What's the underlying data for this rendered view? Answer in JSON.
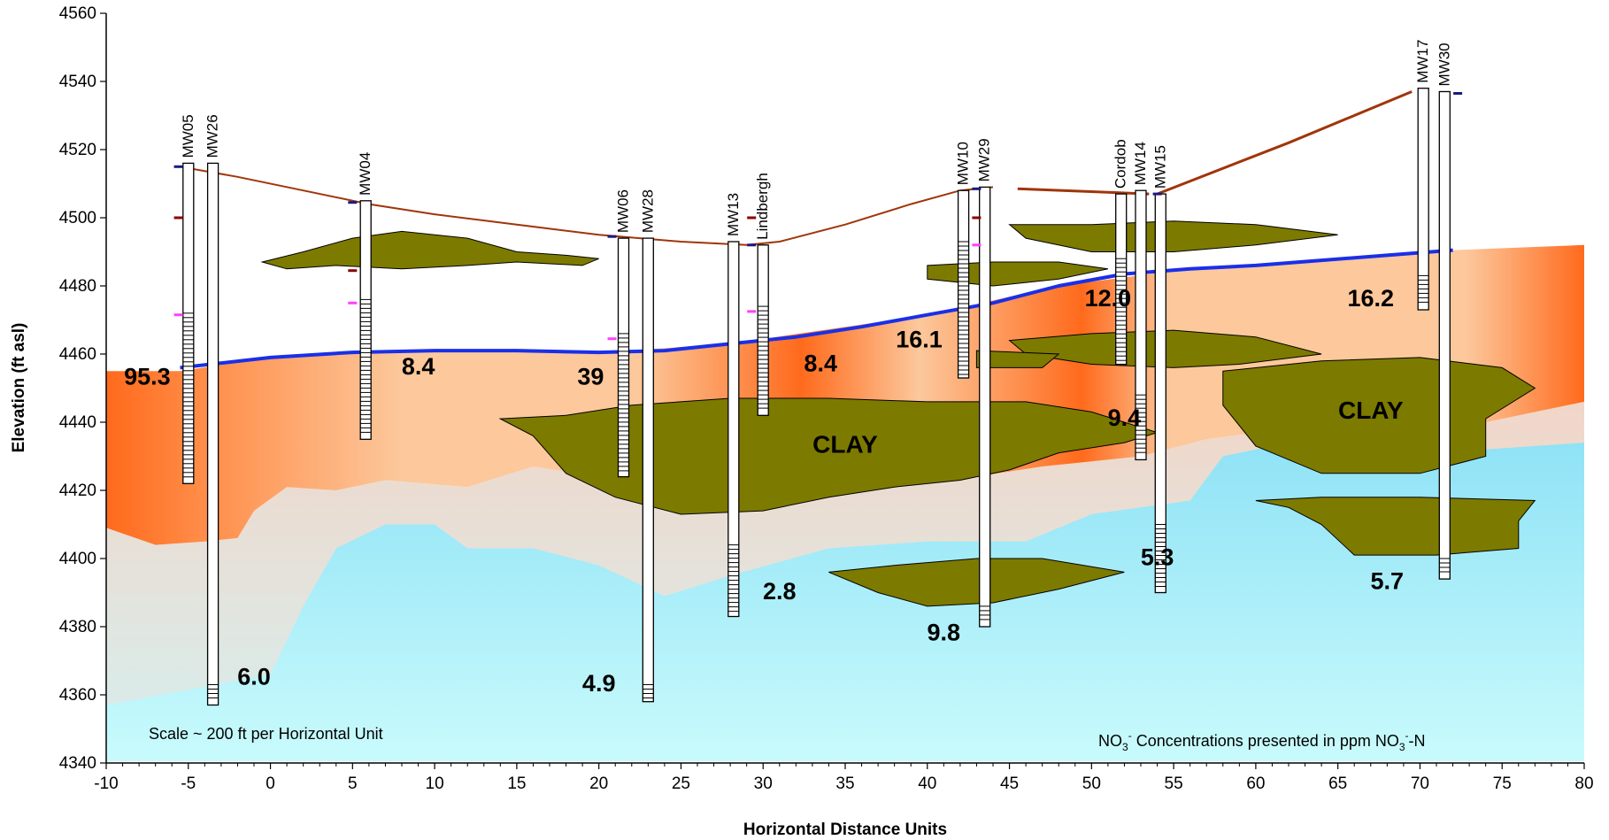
{
  "chart_data": {
    "type": "diagram",
    "xlabel": "Horizontal Distance Units",
    "ylabel": "Elevation (ft asl)",
    "xlim": [
      -10,
      80
    ],
    "ylim": [
      4340,
      4560
    ],
    "x_ticks": [
      -10,
      -5,
      0,
      5,
      10,
      15,
      20,
      25,
      30,
      35,
      40,
      45,
      50,
      55,
      60,
      65,
      70,
      75,
      80
    ],
    "y_ticks": [
      4340,
      4360,
      4380,
      4400,
      4420,
      4440,
      4460,
      4480,
      4500,
      4520,
      4540,
      4560
    ],
    "scale_note": "Scale ~ 200 ft per Horizontal Unit",
    "concentration_note": {
      "pre": "NO",
      "sub1": "3",
      "sup1": "-",
      "mid": " Concentrations presented in ppm NO",
      "sub2": "3",
      "sup2": "-",
      "post": "-N"
    },
    "colors": {
      "ground_surface": "#a0350b",
      "water_table": "#1a2fe8",
      "clay": "#7d7a00",
      "nitrate_high": "#ff6a1c",
      "nitrate_low": "#fcc89c",
      "groundwater": "#8fe2f6",
      "groundwater_light": "#c9fbfc"
    },
    "ground_surface": [
      [
        -5.5,
        4515
      ],
      [
        -2,
        4512
      ],
      [
        2,
        4508
      ],
      [
        6,
        4504
      ],
      [
        10,
        4501
      ],
      [
        15,
        4498
      ],
      [
        20,
        4495
      ],
      [
        25,
        4493
      ],
      [
        29,
        4492
      ],
      [
        31,
        4493
      ],
      [
        35,
        4498
      ],
      [
        39,
        4504
      ],
      [
        42,
        4508
      ],
      [
        44,
        4509
      ],
      null,
      [
        45.5,
        4508.5
      ],
      [
        53.5,
        4507
      ],
      null,
      [
        54,
        4507
      ],
      [
        62,
        4522
      ],
      [
        69.5,
        4537
      ]
    ],
    "water_table": [
      [
        -5.5,
        4456
      ],
      [
        0,
        4459
      ],
      [
        5,
        4460.5
      ],
      [
        10,
        4461
      ],
      [
        15,
        4461
      ],
      [
        20,
        4460.5
      ],
      [
        24,
        4461
      ],
      [
        28,
        4463
      ],
      [
        32,
        4465
      ],
      [
        36,
        4468
      ],
      [
        40,
        4471.5
      ],
      [
        44,
        4475
      ],
      [
        48,
        4480
      ],
      [
        52,
        4483.5
      ],
      [
        56,
        4485
      ],
      [
        60,
        4486
      ],
      [
        64,
        4487.5
      ],
      [
        68,
        4489
      ],
      [
        72,
        4490.5
      ]
    ],
    "nitrate_zone_top": [
      [
        -10,
        4455
      ],
      [
        -5.5,
        4455
      ],
      [
        0,
        4459
      ],
      [
        10,
        4461
      ],
      [
        20,
        4460.5
      ],
      [
        28,
        4463
      ],
      [
        40,
        4471.5
      ],
      [
        48,
        4480
      ],
      [
        56,
        4485
      ],
      [
        64,
        4487.5
      ],
      [
        72,
        4490.5
      ],
      [
        80,
        4492
      ]
    ],
    "nitrate_zone_bottom": [
      [
        80,
        4446
      ],
      [
        74,
        4440
      ],
      [
        66,
        4437
      ],
      [
        60,
        4437
      ],
      [
        57,
        4435
      ],
      [
        53,
        4430
      ],
      [
        47,
        4427
      ],
      [
        43,
        4424
      ],
      [
        38,
        4422
      ],
      [
        33,
        4418
      ],
      [
        30,
        4416
      ],
      [
        25,
        4418
      ],
      [
        20,
        4424
      ],
      [
        16,
        4427
      ],
      [
        12,
        4421
      ],
      [
        7,
        4423
      ],
      [
        4,
        4420
      ],
      [
        1,
        4421
      ],
      [
        -1,
        4414
      ],
      [
        -2,
        4406
      ],
      [
        -4,
        4405
      ],
      [
        -7,
        4404
      ],
      [
        -10,
        4409
      ]
    ],
    "groundwater_zone_top": [
      [
        -10,
        4357
      ],
      [
        0,
        4366
      ],
      [
        2,
        4386
      ],
      [
        4,
        4403
      ],
      [
        7,
        4410
      ],
      [
        10,
        4410
      ],
      [
        12,
        4403
      ],
      [
        16,
        4403
      ],
      [
        20,
        4398
      ],
      [
        24,
        4389
      ],
      [
        28,
        4395
      ],
      [
        34,
        4403
      ],
      [
        40,
        4405
      ],
      [
        46,
        4405
      ],
      [
        50,
        4413
      ],
      [
        56,
        4417
      ],
      [
        58,
        4430
      ],
      [
        62,
        4434
      ],
      [
        66,
        4435
      ],
      [
        74,
        4432
      ],
      [
        80,
        4434
      ]
    ],
    "clay_lenses": [
      [
        [
          -0.5,
          4487
        ],
        [
          2,
          4490
        ],
        [
          5,
          4494
        ],
        [
          8,
          4496
        ],
        [
          12,
          4494
        ],
        [
          15,
          4490
        ],
        [
          18,
          4489
        ],
        [
          20,
          4488
        ],
        [
          19,
          4486
        ],
        [
          15,
          4487
        ],
        [
          12,
          4486
        ],
        [
          8,
          4485
        ],
        [
          4,
          4486
        ],
        [
          1,
          4485
        ]
      ],
      [
        [
          14,
          4441
        ],
        [
          18,
          4442
        ],
        [
          22,
          4445
        ],
        [
          28,
          4447
        ],
        [
          34,
          4447
        ],
        [
          40,
          4446
        ],
        [
          46,
          4446
        ],
        [
          50,
          4443
        ],
        [
          54,
          4437
        ],
        [
          52,
          4434
        ],
        [
          48,
          4431
        ],
        [
          45,
          4426
        ],
        [
          42,
          4423
        ],
        [
          38,
          4421
        ],
        [
          34,
          4418
        ],
        [
          30,
          4414
        ],
        [
          25,
          4413
        ],
        [
          21,
          4418
        ],
        [
          18,
          4425
        ],
        [
          16,
          4436
        ]
      ],
      [
        [
          40,
          4486
        ],
        [
          44,
          4487
        ],
        [
          48,
          4487
        ],
        [
          51,
          4485
        ],
        [
          48,
          4482
        ],
        [
          44,
          4480
        ],
        [
          40,
          4482
        ]
      ],
      [
        [
          45,
          4498
        ],
        [
          50,
          4498
        ],
        [
          55,
          4499
        ],
        [
          60,
          4498
        ],
        [
          65,
          4495
        ],
        [
          60,
          4492
        ],
        [
          55,
          4490
        ],
        [
          50,
          4490
        ],
        [
          46,
          4494
        ]
      ],
      [
        [
          45,
          4464
        ],
        [
          50,
          4466
        ],
        [
          55,
          4467
        ],
        [
          60,
          4465
        ],
        [
          64,
          4460
        ],
        [
          59,
          4457
        ],
        [
          55,
          4456
        ],
        [
          50,
          4457
        ],
        [
          46,
          4460
        ]
      ],
      [
        [
          43,
          4461
        ],
        [
          48,
          4460
        ],
        [
          47,
          4456
        ],
        [
          43,
          4456
        ]
      ],
      [
        [
          34,
          4396
        ],
        [
          38,
          4398
        ],
        [
          43,
          4400
        ],
        [
          47,
          4400
        ],
        [
          52,
          4396
        ],
        [
          48,
          4391
        ],
        [
          44,
          4387
        ],
        [
          40,
          4386
        ],
        [
          37,
          4390
        ]
      ],
      [
        [
          58,
          4455
        ],
        [
          64,
          4458
        ],
        [
          70,
          4459
        ],
        [
          75,
          4456
        ],
        [
          77,
          4450
        ],
        [
          74,
          4441
        ],
        [
          74,
          4430
        ],
        [
          70,
          4425
        ],
        [
          64,
          4425
        ],
        [
          60,
          4433
        ],
        [
          58,
          4445
        ]
      ],
      [
        [
          60,
          4417
        ],
        [
          64,
          4418
        ],
        [
          70,
          4418
        ],
        [
          77,
          4417
        ],
        [
          76,
          4411
        ],
        [
          76,
          4403
        ],
        [
          71,
          4401
        ],
        [
          66,
          4401
        ],
        [
          64,
          4410
        ],
        [
          62,
          4415
        ]
      ]
    ],
    "wells": [
      {
        "name": "MW05",
        "x": -5,
        "top": 4516,
        "bottom": 4422,
        "screen_top": 4472,
        "screen_bottom": 4423
      },
      {
        "name": "MW26",
        "x": -3.5,
        "top": 4516,
        "bottom": 4357,
        "screen_top": 4363,
        "screen_bottom": 4358
      },
      {
        "name": "MW04",
        "x": 5.8,
        "top": 4505,
        "bottom": 4435,
        "screen_top": 4476,
        "screen_bottom": 4436
      },
      {
        "name": "MW06",
        "x": 21.5,
        "top": 4494,
        "bottom": 4424,
        "screen_top": 4466,
        "screen_bottom": 4425
      },
      {
        "name": "MW28",
        "x": 23,
        "top": 4494,
        "bottom": 4358,
        "screen_top": 4363,
        "screen_bottom": 4359
      },
      {
        "name": "MW13",
        "x": 28.2,
        "top": 4493,
        "bottom": 4383,
        "screen_top": 4404,
        "screen_bottom": 4384
      },
      {
        "name": "Lindbergh",
        "x": 30,
        "top": 4492,
        "bottom": 4442,
        "screen_top": 4474,
        "screen_bottom": 4443
      },
      {
        "name": "MW10",
        "x": 42.2,
        "top": 4508,
        "bottom": 4453,
        "screen_top": 4493,
        "screen_bottom": 4454
      },
      {
        "name": "MW29",
        "x": 43.5,
        "top": 4509,
        "bottom": 4380,
        "screen_top": 4386,
        "screen_bottom": 4381
      },
      {
        "name": "Cordob",
        "x": 51.8,
        "top": 4507,
        "bottom": 4457,
        "screen_top": 4488,
        "screen_bottom": 4458
      },
      {
        "name": "MW14",
        "x": 53,
        "top": 4508,
        "bottom": 4429,
        "screen_top": 4448,
        "screen_bottom": 4430
      },
      {
        "name": "MW15",
        "x": 54.2,
        "top": 4507,
        "bottom": 4390,
        "screen_top": 4410,
        "screen_bottom": 4391
      },
      {
        "name": "MW17",
        "x": 70.2,
        "top": 4538,
        "bottom": 4473,
        "screen_top": 4483,
        "screen_bottom": 4474
      },
      {
        "name": "MW30",
        "x": 71.5,
        "top": 4537,
        "bottom": 4394,
        "screen_top": 4400,
        "screen_bottom": 4395
      }
    ],
    "concentrations": [
      {
        "value": "95.3",
        "x": -7.5,
        "y": 4451
      },
      {
        "value": "8.4",
        "x": 9,
        "y": 4454
      },
      {
        "value": "39",
        "x": 19.5,
        "y": 4451
      },
      {
        "value": "8.4",
        "x": 33.5,
        "y": 4455
      },
      {
        "value": "16.1",
        "x": 39.5,
        "y": 4462
      },
      {
        "value": "12.0",
        "x": 51,
        "y": 4474
      },
      {
        "value": "16.2",
        "x": 67,
        "y": 4474
      },
      {
        "value": "9.4",
        "x": 52,
        "y": 4439
      },
      {
        "value": "2.8",
        "x": 31,
        "y": 4388
      },
      {
        "value": "9.8",
        "x": 41,
        "y": 4376
      },
      {
        "value": "5.3",
        "x": 54,
        "y": 4398
      },
      {
        "value": "5.7",
        "x": 68,
        "y": 4391
      },
      {
        "value": "6.0",
        "x": -1,
        "y": 4363
      },
      {
        "value": "4.9",
        "x": 20,
        "y": 4361
      }
    ],
    "clay_labels": [
      {
        "text": "CLAY",
        "x": 35,
        "y": 4431
      },
      {
        "text": "CLAY",
        "x": 67,
        "y": 4441
      }
    ],
    "small_marks": [
      {
        "x": -5.6,
        "y": 4515,
        "color": "#1a1a80"
      },
      {
        "x": -5.6,
        "y": 4500,
        "color": "#8b0000"
      },
      {
        "x": -5.6,
        "y": 4471.5,
        "color": "#ff40ff"
      },
      {
        "x": 5,
        "y": 4504.5,
        "color": "#1a1a80"
      },
      {
        "x": 5,
        "y": 4484.5,
        "color": "#8b0000"
      },
      {
        "x": 5,
        "y": 4475,
        "color": "#ff40ff"
      },
      {
        "x": 20.8,
        "y": 4494.5,
        "color": "#1a1a80"
      },
      {
        "x": 20.8,
        "y": 4464.5,
        "color": "#ff40ff"
      },
      {
        "x": 29.3,
        "y": 4500,
        "color": "#8b0000"
      },
      {
        "x": 29.3,
        "y": 4472.5,
        "color": "#ff40ff"
      },
      {
        "x": 29.3,
        "y": 4492,
        "color": "#1a1a80"
      },
      {
        "x": 43,
        "y": 4508.5,
        "color": "#1a1a80"
      },
      {
        "x": 43,
        "y": 4500,
        "color": "#8b0000"
      },
      {
        "x": 43,
        "y": 4492,
        "color": "#ff40ff"
      },
      {
        "x": 54,
        "y": 4507,
        "color": "#1a1a80"
      },
      {
        "x": 72.3,
        "y": 4536.5,
        "color": "#1a1a80"
      }
    ]
  }
}
